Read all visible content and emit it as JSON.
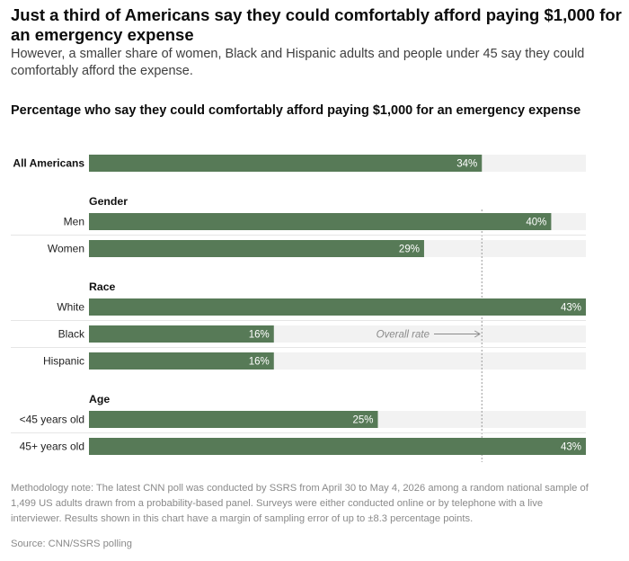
{
  "header": {
    "headline": "Just a third of Americans say they could comfortably afford paying $1,000 for an emergency expense",
    "subhead": "However, a smaller share of women, Black and Hispanic adults and people under 45 say they could comfortably afford the expense."
  },
  "chart_data": {
    "type": "bar",
    "orientation": "horizontal",
    "title": "Percentage who say they could comfortably afford paying $1,000 for an emergency expense",
    "xlim": [
      0,
      43
    ],
    "value_suffix": "%",
    "reference_line": {
      "value": 34,
      "label": "Overall rate"
    },
    "bar_color": "#577a57",
    "track_color": "#f2f2f2",
    "groups": [
      {
        "heading": "",
        "rows": [
          {
            "label": "All Americans",
            "value": 34
          }
        ]
      },
      {
        "heading": "Gender",
        "rows": [
          {
            "label": "Men",
            "value": 40
          },
          {
            "label": "Women",
            "value": 29
          }
        ]
      },
      {
        "heading": "Race",
        "rows": [
          {
            "label": "White",
            "value": 43
          },
          {
            "label": "Black",
            "value": 16
          },
          {
            "label": "Hispanic",
            "value": 16
          }
        ]
      },
      {
        "heading": "Age",
        "rows": [
          {
            "label": "<45 years old",
            "value": 25
          },
          {
            "label": "45+ years old",
            "value": 43
          }
        ]
      }
    ]
  },
  "footer": {
    "methodology": "Methodology note: The latest CNN poll was conducted by SSRS from April 30 to May 4, 2026 among a random national sample of 1,499 US adults drawn from a probability-based panel. Surveys were either conducted online or by telephone with a live interviewer. Results shown in this chart have a margin of sampling error of up to ±8.3 percentage points.",
    "source": "Source: CNN/SSRS polling"
  }
}
